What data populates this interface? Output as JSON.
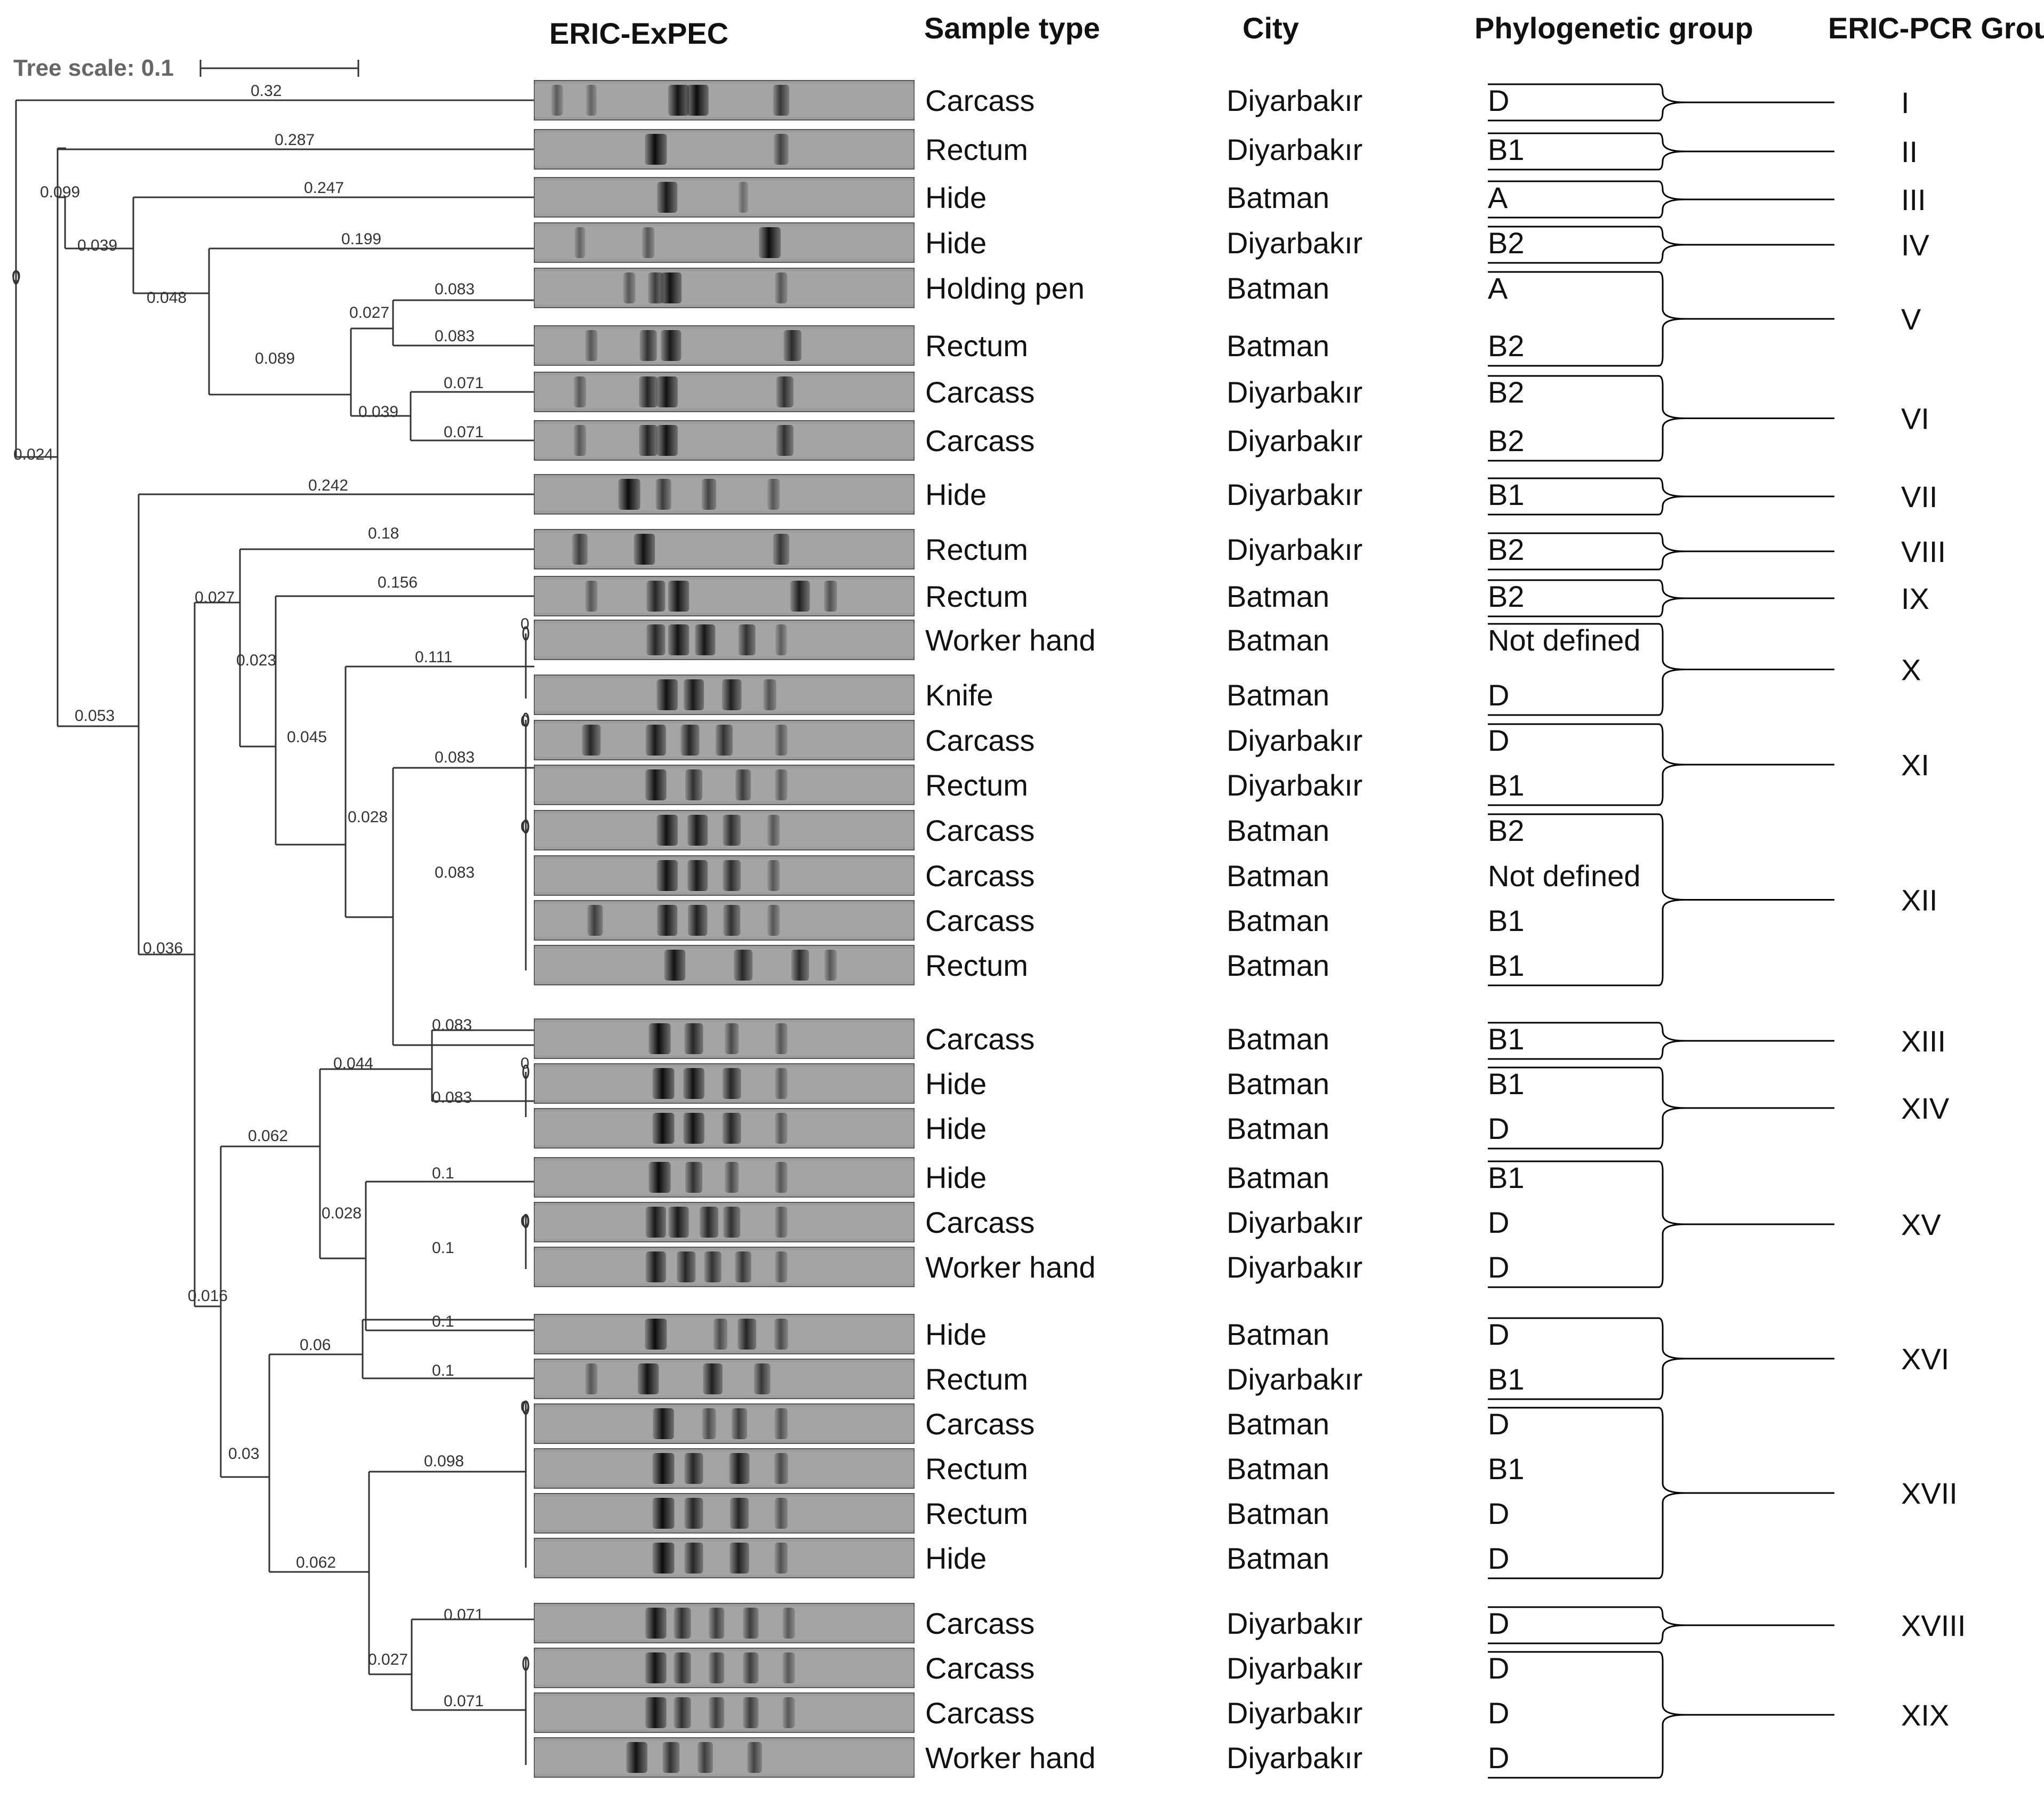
{
  "headers": {
    "gel": "ERIC-ExPEC",
    "sample_type": "Sample type",
    "city": "City",
    "phylogroup": "Phylogenetic group",
    "eric_group": "ERIC-PCR Group"
  },
  "tree_scale": {
    "label": "Tree scale: 0.1"
  },
  "samples": [
    {
      "sample_type": "Carcass",
      "city": "Diyarbakır",
      "phylo": "D"
    },
    {
      "sample_type": "Rectum",
      "city": "Diyarbakır",
      "phylo": "B1"
    },
    {
      "sample_type": "Hide",
      "city": "Batman",
      "phylo": "A"
    },
    {
      "sample_type": "Hide",
      "city": "Diyarbakır",
      "phylo": "B2"
    },
    {
      "sample_type": "Holding pen",
      "city": "Batman",
      "phylo": "A"
    },
    {
      "sample_type": "Rectum",
      "city": "Batman",
      "phylo": "B2"
    },
    {
      "sample_type": "Carcass",
      "city": "Diyarbakır",
      "phylo": "B2"
    },
    {
      "sample_type": "Carcass",
      "city": "Diyarbakır",
      "phylo": "B2"
    },
    {
      "sample_type": "Hide",
      "city": "Diyarbakır",
      "phylo": "B1"
    },
    {
      "sample_type": "Rectum",
      "city": "Diyarbakır",
      "phylo": "B2"
    },
    {
      "sample_type": "Rectum",
      "city": "Batman",
      "phylo": "B2"
    },
    {
      "sample_type": "Worker hand",
      "city": "Batman",
      "phylo": "Not defined"
    },
    {
      "sample_type": "Knife",
      "city": "Batman",
      "phylo": "D"
    },
    {
      "sample_type": "Carcass",
      "city": "Diyarbakır",
      "phylo": "D"
    },
    {
      "sample_type": "Rectum",
      "city": "Diyarbakır",
      "phylo": "B1"
    },
    {
      "sample_type": "Carcass",
      "city": "Batman",
      "phylo": "B2"
    },
    {
      "sample_type": "Carcass",
      "city": "Batman",
      "phylo": "Not defined"
    },
    {
      "sample_type": "Carcass",
      "city": "Batman",
      "phylo": "B1"
    },
    {
      "sample_type": "Rectum",
      "city": "Batman",
      "phylo": "B1"
    },
    {
      "sample_type": "Carcass",
      "city": "Batman",
      "phylo": "B1"
    },
    {
      "sample_type": "Hide",
      "city": "Batman",
      "phylo": "B1"
    },
    {
      "sample_type": "Hide",
      "city": "Batman",
      "phylo": "D"
    },
    {
      "sample_type": "Hide",
      "city": "Batman",
      "phylo": "B1"
    },
    {
      "sample_type": "Carcass",
      "city": "Diyarbakır",
      "phylo": "D"
    },
    {
      "sample_type": "Worker hand",
      "city": "Diyarbakır",
      "phylo": "D"
    },
    {
      "sample_type": "Hide",
      "city": "Batman",
      "phylo": "D"
    },
    {
      "sample_type": "Rectum",
      "city": "Diyarbakır",
      "phylo": "B1"
    },
    {
      "sample_type": "Carcass",
      "city": "Batman",
      "phylo": "D"
    },
    {
      "sample_type": "Rectum",
      "city": "Batman",
      "phylo": "B1"
    },
    {
      "sample_type": "Rectum",
      "city": "Batman",
      "phylo": "D"
    },
    {
      "sample_type": "Hide",
      "city": "Batman",
      "phylo": "D"
    },
    {
      "sample_type": "Carcass",
      "city": "Diyarbakır",
      "phylo": "D"
    },
    {
      "sample_type": "Carcass",
      "city": "Diyarbakır",
      "phylo": "D"
    },
    {
      "sample_type": "Carcass",
      "city": "Diyarbakır",
      "phylo": "D"
    },
    {
      "sample_type": "Worker hand",
      "city": "Diyarbakır",
      "phylo": "D"
    }
  ],
  "eric_groups": [
    {
      "label": "I",
      "first": 0,
      "last": 0
    },
    {
      "label": "II",
      "first": 1,
      "last": 1
    },
    {
      "label": "III",
      "first": 2,
      "last": 2
    },
    {
      "label": "IV",
      "first": 3,
      "last": 3
    },
    {
      "label": "V",
      "first": 4,
      "last": 5
    },
    {
      "label": "VI",
      "first": 6,
      "last": 7
    },
    {
      "label": "VII",
      "first": 8,
      "last": 8
    },
    {
      "label": "VIII",
      "first": 9,
      "last": 9
    },
    {
      "label": "IX",
      "first": 10,
      "last": 10
    },
    {
      "label": "X",
      "first": 11,
      "last": 12
    },
    {
      "label": "XI",
      "first": 13,
      "last": 14
    },
    {
      "label": "XII",
      "first": 15,
      "last": 18
    },
    {
      "label": "XIII",
      "first": 19,
      "last": 19
    },
    {
      "label": "XIV",
      "first": 20,
      "last": 21
    },
    {
      "label": "XV",
      "first": 22,
      "last": 24
    },
    {
      "label": "XVI",
      "first": 25,
      "last": 26
    },
    {
      "label": "XVII",
      "first": 27,
      "last": 30
    },
    {
      "label": "XVIII",
      "first": 31,
      "last": 31
    },
    {
      "label": "XIX",
      "first": 32,
      "last": 34
    }
  ],
  "branch_labels": [
    "0.32",
    "0.287",
    "0.247",
    "0.199",
    "0.083",
    "0.083",
    "0.071",
    "0.071",
    "0.027",
    "0.039",
    "0.089",
    "0.048",
    "0.039",
    "0.099",
    "0.242",
    "0.18",
    "0.156",
    "0.111",
    "0.083",
    "0.083",
    "0.028",
    "0.045",
    "0.023",
    "0.027",
    "0.083",
    "0.083",
    "0.044",
    "0.1",
    "0.1",
    "0.028",
    "0.062",
    "0.1",
    "0.1",
    "0.06",
    "0.098",
    "0.071",
    "0.071",
    "0.027",
    "0.062",
    "0.03",
    "0.016",
    "0.036",
    "0.053",
    "0.024",
    "0",
    "0",
    "0",
    "0",
    "0",
    "0",
    "0"
  ],
  "gel_lanes": [
    [
      [
        0.06,
        0.25
      ],
      [
        0.15,
        0.2
      ],
      [
        0.38,
        0.85
      ],
      [
        0.43,
        0.9
      ],
      [
        0.65,
        0.55
      ]
    ],
    [
      [
        0.32,
        0.9
      ],
      [
        0.65,
        0.45
      ]
    ],
    [
      [
        0.35,
        0.8
      ],
      [
        0.55,
        0.15
      ]
    ],
    [
      [
        0.12,
        0.2
      ],
      [
        0.3,
        0.3
      ],
      [
        0.62,
        0.9
      ]
    ],
    [
      [
        0.25,
        0.3
      ],
      [
        0.32,
        0.5
      ],
      [
        0.36,
        0.85
      ],
      [
        0.65,
        0.3
      ]
    ],
    [
      [
        0.15,
        0.3
      ],
      [
        0.3,
        0.6
      ],
      [
        0.36,
        0.8
      ],
      [
        0.68,
        0.65
      ]
    ],
    [
      [
        0.12,
        0.3
      ],
      [
        0.3,
        0.7
      ],
      [
        0.35,
        0.85
      ],
      [
        0.66,
        0.6
      ]
    ],
    [
      [
        0.12,
        0.3
      ],
      [
        0.3,
        0.7
      ],
      [
        0.35,
        0.85
      ],
      [
        0.66,
        0.6
      ]
    ],
    [
      [
        0.25,
        0.9
      ],
      [
        0.34,
        0.5
      ],
      [
        0.46,
        0.45
      ],
      [
        0.63,
        0.3
      ]
    ],
    [
      [
        0.12,
        0.5
      ],
      [
        0.29,
        0.85
      ],
      [
        0.65,
        0.55
      ]
    ],
    [
      [
        0.15,
        0.3
      ],
      [
        0.32,
        0.7
      ],
      [
        0.38,
        0.85
      ],
      [
        0.7,
        0.75
      ],
      [
        0.78,
        0.35
      ]
    ],
    [
      [
        0.32,
        0.7
      ],
      [
        0.38,
        0.85
      ],
      [
        0.45,
        0.8
      ],
      [
        0.56,
        0.6
      ],
      [
        0.65,
        0.25
      ]
    ],
    [
      [
        0.35,
        0.85
      ],
      [
        0.42,
        0.8
      ],
      [
        0.52,
        0.75
      ],
      [
        0.62,
        0.35
      ]
    ],
    [
      [
        0.15,
        0.7
      ],
      [
        0.32,
        0.8
      ],
      [
        0.41,
        0.7
      ],
      [
        0.5,
        0.6
      ],
      [
        0.65,
        0.3
      ]
    ],
    [
      [
        0.32,
        0.85
      ],
      [
        0.42,
        0.6
      ],
      [
        0.55,
        0.5
      ],
      [
        0.65,
        0.3
      ]
    ],
    [
      [
        0.35,
        0.85
      ],
      [
        0.43,
        0.8
      ],
      [
        0.52,
        0.65
      ],
      [
        0.63,
        0.3
      ]
    ],
    [
      [
        0.35,
        0.85
      ],
      [
        0.43,
        0.8
      ],
      [
        0.52,
        0.65
      ],
      [
        0.63,
        0.3
      ]
    ],
    [
      [
        0.16,
        0.5
      ],
      [
        0.35,
        0.8
      ],
      [
        0.43,
        0.75
      ],
      [
        0.52,
        0.6
      ],
      [
        0.63,
        0.3
      ]
    ],
    [
      [
        0.37,
        0.85
      ],
      [
        0.55,
        0.7
      ],
      [
        0.7,
        0.65
      ],
      [
        0.78,
        0.3
      ]
    ],
    [
      [
        0.33,
        0.9
      ],
      [
        0.42,
        0.7
      ],
      [
        0.52,
        0.4
      ],
      [
        0.65,
        0.3
      ]
    ],
    [
      [
        0.34,
        0.9
      ],
      [
        0.42,
        0.85
      ],
      [
        0.52,
        0.7
      ],
      [
        0.65,
        0.3
      ]
    ],
    [
      [
        0.34,
        0.9
      ],
      [
        0.42,
        0.85
      ],
      [
        0.52,
        0.7
      ],
      [
        0.65,
        0.3
      ]
    ],
    [
      [
        0.33,
        0.9
      ],
      [
        0.42,
        0.6
      ],
      [
        0.52,
        0.4
      ],
      [
        0.65,
        0.3
      ]
    ],
    [
      [
        0.32,
        0.8
      ],
      [
        0.38,
        0.8
      ],
      [
        0.46,
        0.7
      ],
      [
        0.52,
        0.6
      ],
      [
        0.65,
        0.3
      ]
    ],
    [
      [
        0.32,
        0.8
      ],
      [
        0.4,
        0.7
      ],
      [
        0.47,
        0.6
      ],
      [
        0.55,
        0.55
      ],
      [
        0.65,
        0.3
      ]
    ],
    [
      [
        0.32,
        0.9
      ],
      [
        0.49,
        0.4
      ],
      [
        0.56,
        0.7
      ],
      [
        0.65,
        0.4
      ]
    ],
    [
      [
        0.15,
        0.3
      ],
      [
        0.3,
        0.85
      ],
      [
        0.47,
        0.75
      ],
      [
        0.6,
        0.55
      ]
    ],
    [
      [
        0.34,
        0.85
      ],
      [
        0.46,
        0.4
      ],
      [
        0.54,
        0.5
      ],
      [
        0.65,
        0.35
      ]
    ],
    [
      [
        0.34,
        0.9
      ],
      [
        0.42,
        0.7
      ],
      [
        0.54,
        0.8
      ],
      [
        0.65,
        0.4
      ]
    ],
    [
      [
        0.34,
        0.9
      ],
      [
        0.42,
        0.7
      ],
      [
        0.54,
        0.7
      ],
      [
        0.65,
        0.35
      ]
    ],
    [
      [
        0.34,
        0.9
      ],
      [
        0.42,
        0.7
      ],
      [
        0.54,
        0.75
      ],
      [
        0.65,
        0.35
      ]
    ],
    [
      [
        0.32,
        0.85
      ],
      [
        0.39,
        0.6
      ],
      [
        0.48,
        0.5
      ],
      [
        0.57,
        0.5
      ],
      [
        0.67,
        0.3
      ]
    ],
    [
      [
        0.32,
        0.85
      ],
      [
        0.39,
        0.6
      ],
      [
        0.48,
        0.5
      ],
      [
        0.57,
        0.5
      ],
      [
        0.67,
        0.3
      ]
    ],
    [
      [
        0.32,
        0.85
      ],
      [
        0.39,
        0.6
      ],
      [
        0.48,
        0.5
      ],
      [
        0.57,
        0.5
      ],
      [
        0.67,
        0.3
      ]
    ],
    [
      [
        0.27,
        0.85
      ],
      [
        0.36,
        0.6
      ],
      [
        0.45,
        0.5
      ],
      [
        0.58,
        0.45
      ]
    ]
  ]
}
